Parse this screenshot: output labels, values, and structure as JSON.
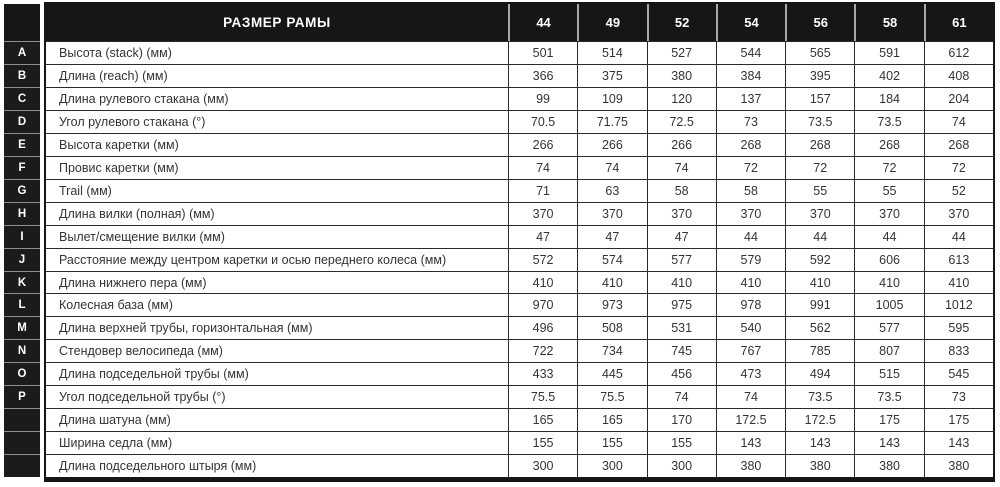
{
  "table": {
    "header": {
      "label_col": "РАЗМЕР РАМЫ",
      "sizes": [
        "44",
        "49",
        "52",
        "54",
        "56",
        "58",
        "61"
      ]
    },
    "rows": [
      {
        "key": "A",
        "label": "Высота (stack) (мм)",
        "values": [
          "501",
          "514",
          "527",
          "544",
          "565",
          "591",
          "612"
        ]
      },
      {
        "key": "B",
        "label": "Длина (reach) (мм)",
        "values": [
          "366",
          "375",
          "380",
          "384",
          "395",
          "402",
          "408"
        ]
      },
      {
        "key": "C",
        "label": "Длина рулевого стакана (мм)",
        "values": [
          "99",
          "109",
          "120",
          "137",
          "157",
          "184",
          "204"
        ]
      },
      {
        "key": "D",
        "label": "Угол рулевого стакана (°)",
        "values": [
          "70.5",
          "71.75",
          "72.5",
          "73",
          "73.5",
          "73.5",
          "74"
        ]
      },
      {
        "key": "E",
        "label": "Высота каретки (мм)",
        "values": [
          "266",
          "266",
          "266",
          "268",
          "268",
          "268",
          "268"
        ]
      },
      {
        "key": "F",
        "label": "Провис каретки (мм)",
        "values": [
          "74",
          "74",
          "74",
          "72",
          "72",
          "72",
          "72"
        ]
      },
      {
        "key": "G",
        "label": "Trail (мм)",
        "values": [
          "71",
          "63",
          "58",
          "58",
          "55",
          "55",
          "52"
        ]
      },
      {
        "key": "H",
        "label": "Длина вилки (полная) (мм)",
        "values": [
          "370",
          "370",
          "370",
          "370",
          "370",
          "370",
          "370"
        ]
      },
      {
        "key": "I",
        "label": "Вылет/смещение вилки (мм)",
        "values": [
          "47",
          "47",
          "47",
          "44",
          "44",
          "44",
          "44"
        ]
      },
      {
        "key": "J",
        "label": "Расстояние между центром каретки и осью переднего колеса (мм)",
        "values": [
          "572",
          "574",
          "577",
          "579",
          "592",
          "606",
          "613"
        ]
      },
      {
        "key": "K",
        "label": "Длина нижнего пера (мм)",
        "values": [
          "410",
          "410",
          "410",
          "410",
          "410",
          "410",
          "410"
        ]
      },
      {
        "key": "L",
        "label": "Колесная база (мм)",
        "values": [
          "970",
          "973",
          "975",
          "978",
          "991",
          "1005",
          "1012"
        ]
      },
      {
        "key": "M",
        "label": "Длина верхней трубы, горизонтальная (мм)",
        "values": [
          "496",
          "508",
          "531",
          "540",
          "562",
          "577",
          "595"
        ]
      },
      {
        "key": "N",
        "label": "Стендовер велосипеда (мм)",
        "values": [
          "722",
          "734",
          "745",
          "767",
          "785",
          "807",
          "833"
        ]
      },
      {
        "key": "O",
        "label": "Длина подседельной трубы (мм)",
        "values": [
          "433",
          "445",
          "456",
          "473",
          "494",
          "515",
          "545"
        ]
      },
      {
        "key": "P",
        "label": "Угол подседельной трубы (°)",
        "values": [
          "75.5",
          "75.5",
          "74",
          "74",
          "73.5",
          "73.5",
          "73"
        ]
      },
      {
        "key": "",
        "label": "Длина шатуна (мм)",
        "values": [
          "165",
          "165",
          "170",
          "172.5",
          "172.5",
          "175",
          "175"
        ]
      },
      {
        "key": "",
        "label": "Ширина седла (мм)",
        "values": [
          "155",
          "155",
          "155",
          "143",
          "143",
          "143",
          "143"
        ]
      },
      {
        "key": "",
        "label": "Длина подседельного штыря (мм)",
        "values": [
          "300",
          "300",
          "300",
          "380",
          "380",
          "380",
          "380"
        ]
      }
    ]
  },
  "colors": {
    "header_bg": "#161616",
    "header_text": "#ffffff",
    "body_text": "#2f353b",
    "grid_line": "#2b2b2b",
    "letter_separator": "#8f8f8f",
    "header_separator": "#a8a8a8"
  }
}
